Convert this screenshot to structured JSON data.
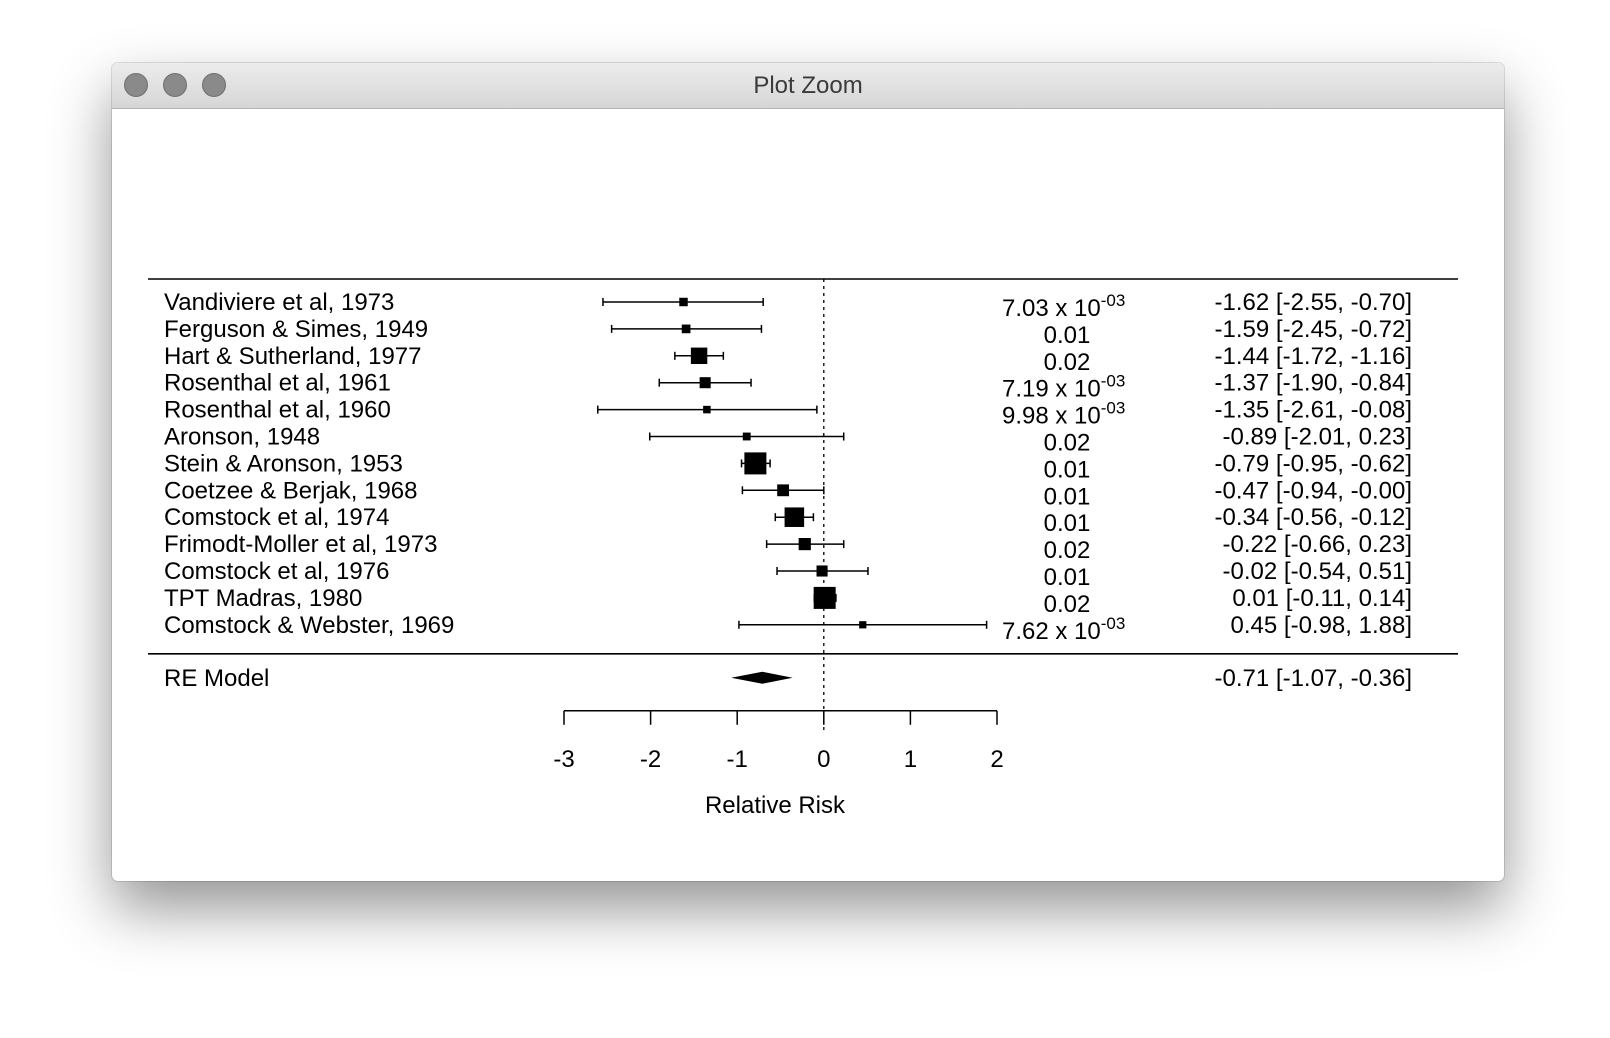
{
  "window": {
    "title": "Plot Zoom",
    "buttons": [
      "close",
      "minimize",
      "zoom"
    ]
  },
  "chart_data": {
    "type": "forest",
    "xlabel": "Relative Risk",
    "xlim": [
      -3,
      2
    ],
    "xticks": [
      -3,
      -2,
      -1,
      0,
      1,
      2
    ],
    "xtick_labels": [
      "-3",
      "-2",
      "-1",
      "0",
      "1",
      "2"
    ],
    "reference_line": 0,
    "studies": [
      {
        "label": "Vandiviere et al, 1973",
        "weight_base": "7.03",
        "weight_exp": "-03",
        "estimate": -1.62,
        "lower": -2.55,
        "upper": -0.7,
        "ci_text": "-1.62 [-2.55, -0.70]"
      },
      {
        "label": "Ferguson & Simes, 1949",
        "weight": "0.01",
        "estimate": -1.59,
        "lower": -2.45,
        "upper": -0.72,
        "ci_text": "-1.59 [-2.45, -0.72]"
      },
      {
        "label": "Hart & Sutherland, 1977",
        "weight": "0.02",
        "estimate": -1.44,
        "lower": -1.72,
        "upper": -1.16,
        "ci_text": "-1.44 [-1.72, -1.16]"
      },
      {
        "label": "Rosenthal et al, 1961",
        "weight_base": "7.19",
        "weight_exp": "-03",
        "estimate": -1.37,
        "lower": -1.9,
        "upper": -0.84,
        "ci_text": "-1.37 [-1.90, -0.84]"
      },
      {
        "label": "Rosenthal et al, 1960",
        "weight_base": "9.98",
        "weight_exp": "-03",
        "estimate": -1.35,
        "lower": -2.61,
        "upper": -0.08,
        "ci_text": "-1.35 [-2.61, -0.08]"
      },
      {
        "label": "Aronson, 1948",
        "weight": "0.02",
        "estimate": -0.89,
        "lower": -2.01,
        "upper": 0.23,
        "ci_text": "-0.89 [-2.01,  0.23]"
      },
      {
        "label": "Stein & Aronson, 1953",
        "weight": "0.01",
        "estimate": -0.79,
        "lower": -0.95,
        "upper": -0.62,
        "ci_text": "-0.79 [-0.95, -0.62]"
      },
      {
        "label": "Coetzee & Berjak, 1968",
        "weight": "0.01",
        "estimate": -0.47,
        "lower": -0.94,
        "upper": -0.0,
        "ci_text": "-0.47 [-0.94, -0.00]"
      },
      {
        "label": "Comstock et al, 1974",
        "weight": "0.01",
        "estimate": -0.34,
        "lower": -0.56,
        "upper": -0.12,
        "ci_text": "-0.34 [-0.56, -0.12]"
      },
      {
        "label": "Frimodt-Moller et al, 1973",
        "weight": "0.02",
        "estimate": -0.22,
        "lower": -0.66,
        "upper": 0.23,
        "ci_text": "-0.22 [-0.66,  0.23]"
      },
      {
        "label": "Comstock et al, 1976",
        "weight": "0.01",
        "estimate": -0.02,
        "lower": -0.54,
        "upper": 0.51,
        "ci_text": "-0.02 [-0.54,  0.51]"
      },
      {
        "label": "TPT Madras, 1980",
        "weight": "0.02",
        "estimate": 0.01,
        "lower": -0.11,
        "upper": 0.14,
        "ci_text": " 0.01 [-0.11,  0.14]"
      },
      {
        "label": "Comstock & Webster, 1969",
        "weight_base": "7.62",
        "weight_exp": "-03",
        "estimate": 0.45,
        "lower": -0.98,
        "upper": 1.88,
        "ci_text": " 0.45 [-0.98,  1.88]"
      }
    ],
    "summary": {
      "label": "RE Model",
      "estimate": -0.71,
      "lower": -1.07,
      "upper": -0.36,
      "ci_text": "-0.71 [-1.07, -0.36]"
    },
    "weight_exp_prefix": " x 10"
  }
}
